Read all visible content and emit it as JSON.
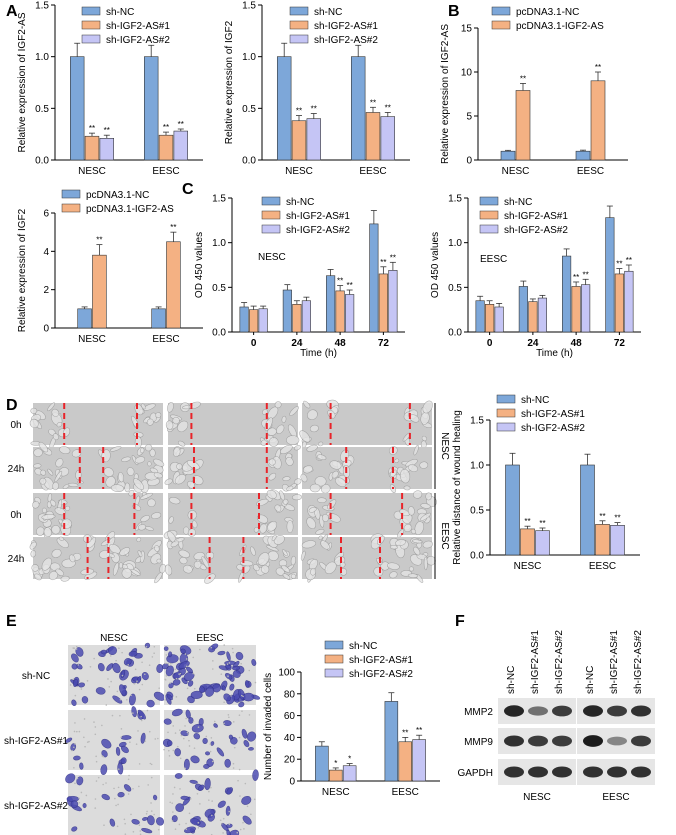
{
  "panels": {
    "A": "A",
    "B": "B",
    "C": "C",
    "D": "D",
    "E": "E",
    "F": "F"
  },
  "colors": {
    "nc": "#7da7d9",
    "as1": "#f4b183",
    "as2": "#c5c5f5",
    "pc_nc": "#7da7d9",
    "pc_as": "#f4b183",
    "dash": "#e8242a"
  },
  "chart_data": [
    {
      "id": "A1",
      "type": "bar",
      "ylabel": "Relative expression of IGF2-AS",
      "ylim": [
        0,
        1.5
      ],
      "yticks": [
        "0.0",
        "0.5",
        "1.0",
        "1.5"
      ],
      "yticks_num": [
        0,
        0.5,
        1,
        1.5
      ],
      "categories": [
        "NESC",
        "EESC"
      ],
      "series": [
        {
          "name": "sh-NC",
          "values": [
            1.0,
            1.0
          ],
          "err": [
            0.13,
            0.11
          ]
        },
        {
          "name": "sh-IGF2-AS#1",
          "values": [
            0.23,
            0.24
          ],
          "err": [
            0.03,
            0.03
          ]
        },
        {
          "name": "sh-IGF2-AS#2",
          "values": [
            0.21,
            0.28
          ],
          "err": [
            0.03,
            0.02
          ]
        }
      ],
      "stars": [
        [
          "",
          "**",
          "**"
        ],
        [
          "",
          "**",
          "**"
        ]
      ]
    },
    {
      "id": "A2",
      "type": "bar",
      "ylabel": "Relative expression of IGF2",
      "ylim": [
        0,
        1.5
      ],
      "yticks": [
        "0.0",
        "0.5",
        "1.0",
        "1.5"
      ],
      "yticks_num": [
        0,
        0.5,
        1,
        1.5
      ],
      "categories": [
        "NESC",
        "EESC"
      ],
      "series": [
        {
          "name": "sh-NC",
          "values": [
            1.0,
            1.0
          ],
          "err": [
            0.13,
            0.11
          ]
        },
        {
          "name": "sh-IGF2-AS#1",
          "values": [
            0.38,
            0.46
          ],
          "err": [
            0.05,
            0.05
          ]
        },
        {
          "name": "sh-IGF2-AS#2",
          "values": [
            0.4,
            0.42
          ],
          "err": [
            0.05,
            0.04
          ]
        }
      ],
      "stars": [
        [
          "",
          "**",
          "**"
        ],
        [
          "",
          "**",
          "**"
        ]
      ]
    },
    {
      "id": "B1",
      "type": "bar",
      "ylabel": "Relative expression of IGF2-AS",
      "ylim": [
        0,
        15
      ],
      "yticks": [
        "0",
        "5",
        "10",
        "15"
      ],
      "yticks_num": [
        0,
        5,
        10,
        15
      ],
      "categories": [
        "NESC",
        "EESC"
      ],
      "series": [
        {
          "name": "pcDNA3.1-NC",
          "values": [
            1.0,
            1.0
          ],
          "err": [
            0.1,
            0.12
          ]
        },
        {
          "name": "pcDNA3.1-IGF2-AS",
          "values": [
            7.9,
            9.0
          ],
          "err": [
            0.8,
            1.0
          ]
        }
      ],
      "stars": [
        [
          "",
          "**"
        ],
        [
          "",
          "**"
        ]
      ]
    },
    {
      "id": "B2",
      "type": "bar",
      "ylabel": "Relative expression of IGF2",
      "ylim": [
        0,
        6
      ],
      "yticks": [
        "0",
        "2",
        "4",
        "6"
      ],
      "yticks_num": [
        0,
        2,
        4,
        6
      ],
      "categories": [
        "NESC",
        "EESC"
      ],
      "series": [
        {
          "name": "pcDNA3.1-NC",
          "values": [
            1.0,
            1.0
          ],
          "err": [
            0.1,
            0.1
          ]
        },
        {
          "name": "pcDNA3.1-IGF2-AS",
          "values": [
            3.8,
            4.5
          ],
          "err": [
            0.55,
            0.5
          ]
        }
      ],
      "stars": [
        [
          "",
          "**"
        ],
        [
          "",
          "**"
        ]
      ]
    },
    {
      "id": "C1",
      "type": "bar",
      "ylabel": "OD 450 values",
      "xlabel": "Time (h)",
      "annotation": "NESC",
      "ylim": [
        0,
        1.5
      ],
      "yticks": [
        "0.0",
        "0.5",
        "1.0",
        "1.5"
      ],
      "yticks_num": [
        0,
        0.5,
        1,
        1.5
      ],
      "categories": [
        "0",
        "24",
        "48",
        "72"
      ],
      "series": [
        {
          "name": "sh-NC",
          "values": [
            0.28,
            0.47,
            0.63,
            1.21
          ],
          "err": [
            0.05,
            0.06,
            0.07,
            0.15
          ]
        },
        {
          "name": "sh-IGF2-AS#1",
          "values": [
            0.25,
            0.31,
            0.46,
            0.65
          ],
          "err": [
            0.04,
            0.04,
            0.06,
            0.08
          ]
        },
        {
          "name": "sh-IGF2-AS#2",
          "values": [
            0.26,
            0.35,
            0.42,
            0.69
          ],
          "err": [
            0.03,
            0.04,
            0.05,
            0.09
          ]
        }
      ],
      "stars": [
        [
          "",
          "",
          ""
        ],
        [
          "",
          "",
          ""
        ],
        [
          "",
          "**",
          "**"
        ],
        [
          "",
          "**",
          "**"
        ]
      ]
    },
    {
      "id": "C2",
      "type": "bar",
      "ylabel": "OD 450 values",
      "xlabel": "Time (h)",
      "annotation": "EESC",
      "ylim": [
        0,
        1.5
      ],
      "yticks": [
        "0.0",
        "0.5",
        "1.0",
        "1.5"
      ],
      "yticks_num": [
        0,
        0.5,
        1,
        1.5
      ],
      "categories": [
        "0",
        "24",
        "48",
        "72"
      ],
      "series": [
        {
          "name": "sh-NC",
          "values": [
            0.35,
            0.51,
            0.85,
            1.28
          ],
          "err": [
            0.05,
            0.06,
            0.08,
            0.13
          ]
        },
        {
          "name": "sh-IGF2-AS#1",
          "values": [
            0.31,
            0.34,
            0.51,
            0.65
          ],
          "err": [
            0.04,
            0.03,
            0.05,
            0.06
          ]
        },
        {
          "name": "sh-IGF2-AS#2",
          "values": [
            0.28,
            0.38,
            0.53,
            0.68
          ],
          "err": [
            0.04,
            0.03,
            0.06,
            0.07
          ]
        }
      ],
      "stars": [
        [
          "",
          "",
          ""
        ],
        [
          "",
          "",
          ""
        ],
        [
          "",
          "**",
          "**"
        ],
        [
          "",
          "**",
          "**"
        ]
      ]
    },
    {
      "id": "D1",
      "type": "bar",
      "ylabel": "Relative distance of wound healing",
      "ylim": [
        0,
        1.5
      ],
      "yticks": [
        "0.0",
        "0.5",
        "1.0",
        "1.5"
      ],
      "yticks_num": [
        0,
        0.5,
        1,
        1.5
      ],
      "categories": [
        "NESC",
        "EESC"
      ],
      "series": [
        {
          "name": "sh-NC",
          "values": [
            1.0,
            1.0
          ],
          "err": [
            0.13,
            0.12
          ]
        },
        {
          "name": "sh-IGF2-AS#1",
          "values": [
            0.29,
            0.34
          ],
          "err": [
            0.03,
            0.04
          ]
        },
        {
          "name": "sh-IGF2-AS#2",
          "values": [
            0.27,
            0.33
          ],
          "err": [
            0.03,
            0.03
          ]
        }
      ],
      "stars": [
        [
          "",
          "**",
          "**"
        ],
        [
          "",
          "**",
          "**"
        ]
      ]
    },
    {
      "id": "E1",
      "type": "bar",
      "ylabel": "Number of invaded cells",
      "ylim": [
        0,
        100
      ],
      "yticks": [
        "0",
        "20",
        "40",
        "60",
        "80",
        "100"
      ],
      "yticks_num": [
        0,
        20,
        40,
        60,
        80,
        100
      ],
      "categories": [
        "NESC",
        "EESC"
      ],
      "series": [
        {
          "name": "sh-NC",
          "values": [
            32,
            73
          ],
          "err": [
            4,
            8
          ]
        },
        {
          "name": "sh-IGF2-AS#1",
          "values": [
            10,
            36
          ],
          "err": [
            2,
            4
          ]
        },
        {
          "name": "sh-IGF2-AS#2",
          "values": [
            14,
            38
          ],
          "err": [
            2,
            4
          ]
        }
      ],
      "stars": [
        [
          "",
          "*",
          "*"
        ],
        [
          "",
          "**",
          "**"
        ]
      ]
    }
  ],
  "micro_d": {
    "time_labels": [
      "0h",
      "24h",
      "0h",
      "24h"
    ],
    "side_labels": [
      "NESC",
      "EESC"
    ]
  },
  "micro_e": {
    "col_labels": [
      "NESC",
      "EESC"
    ],
    "row_labels": [
      "sh-NC",
      "sh-IGF2-AS#1",
      "sh-IGF2-AS#2"
    ]
  },
  "blot": {
    "lane_labels": [
      "sh-NC",
      "sh-IGF2-AS#1",
      "sh-IGF2-AS#2"
    ],
    "proteins": [
      "MMP2",
      "MMP9",
      "GAPDH"
    ],
    "groups": [
      "NESC",
      "EESC"
    ]
  }
}
